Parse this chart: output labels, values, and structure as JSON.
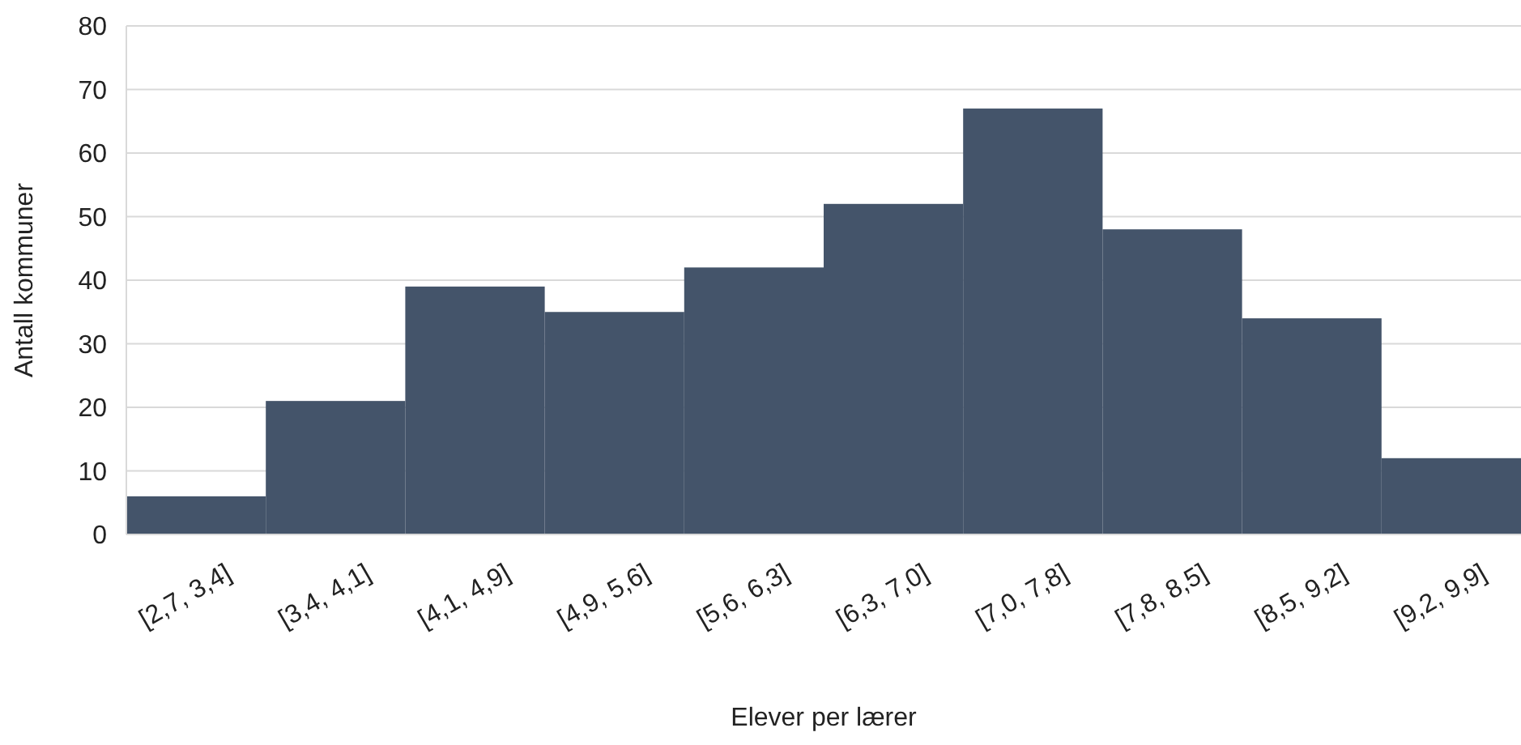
{
  "chart_data": {
    "type": "bar",
    "xlabel": "Elever per lærer",
    "ylabel": "Antall kommuner",
    "categories": [
      "[2,7, 3,4]",
      "[3,4, 4,1]",
      "[4,1, 4,9]",
      "[4,9, 5,6]",
      "[5,6, 6,3]",
      "[6,3, 7,0]",
      "[7,0, 7,8]",
      "[7,8, 8,5]",
      "[8,5, 9,2]",
      "[9,2, 9,9]"
    ],
    "values": [
      6,
      21,
      39,
      35,
      42,
      52,
      67,
      48,
      34,
      12
    ],
    "color": "#44546a",
    "ylim": [
      0,
      80
    ],
    "yticks": [
      0,
      10,
      20,
      30,
      40,
      50,
      60,
      70,
      80
    ],
    "grid": "y"
  }
}
